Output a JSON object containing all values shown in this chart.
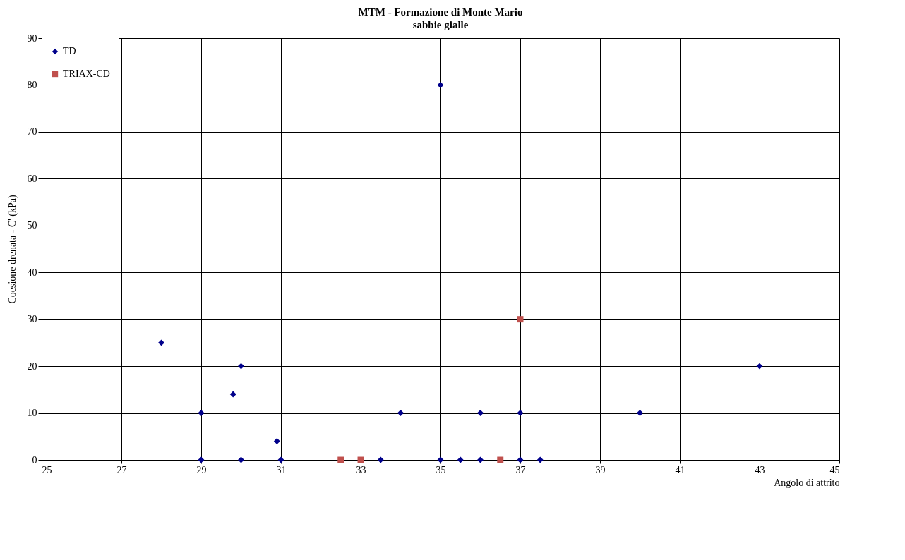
{
  "chart_data": {
    "type": "scatter",
    "title": "MTM - Formazione di Monte Mario",
    "subtitle": "sabbie gialle",
    "xlabel": "Angolo di attrito",
    "ylabel": "Coesione drenata - C' (kPa)",
    "xlim": [
      25,
      45
    ],
    "xticks": [
      25,
      27,
      29,
      31,
      33,
      35,
      37,
      39,
      41,
      43,
      45
    ],
    "ylim": [
      0,
      90
    ],
    "yticks": [
      0,
      10,
      20,
      30,
      40,
      50,
      60,
      70,
      80,
      90
    ],
    "grid": true,
    "legend": "top left",
    "series": [
      {
        "name": "TD",
        "color": "#00008b",
        "marker": "diamond",
        "x": [
          28,
          29,
          29,
          29.8,
          30,
          30,
          30.9,
          31,
          33.5,
          34,
          35,
          35,
          35.5,
          36,
          36,
          37,
          37,
          37.5,
          40,
          43
        ],
        "values": [
          25,
          10,
          0,
          14,
          20,
          0,
          4,
          0,
          0,
          10,
          80,
          0,
          0,
          10,
          0,
          10,
          0,
          0,
          10,
          20
        ]
      },
      {
        "name": "TRIAX-CD",
        "color": "#c0504d",
        "marker": "square",
        "x": [
          32.5,
          33,
          36.5,
          37
        ],
        "values": [
          0,
          0,
          0,
          30
        ]
      }
    ]
  }
}
